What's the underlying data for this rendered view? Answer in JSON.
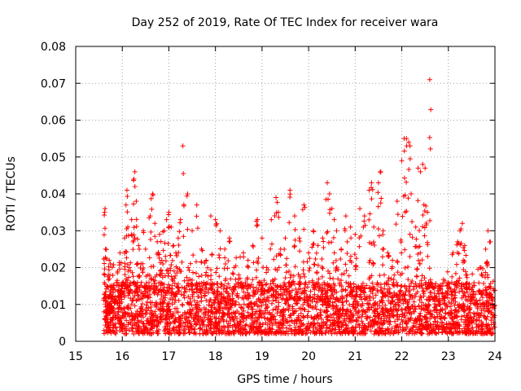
{
  "chart_data": {
    "type": "scatter",
    "title": "Day 252 of 2019, Rate Of TEC Index for receiver wara",
    "xlabel": "GPS time / hours",
    "ylabel": "ROTI / TECUs",
    "xlim": [
      15,
      24
    ],
    "ylim": [
      0,
      0.08
    ],
    "xticks": [
      15,
      16,
      17,
      18,
      19,
      20,
      21,
      22,
      23,
      24
    ],
    "yticks": [
      0,
      0.01,
      0.02,
      0.03,
      0.04,
      0.05,
      0.06,
      0.07,
      0.08
    ],
    "xtick_labels": [
      "15",
      "16",
      "17",
      "18",
      "19",
      "20",
      "21",
      "22",
      "23",
      "24"
    ],
    "ytick_labels": [
      "0",
      "0.01",
      "0.02",
      "0.03",
      "0.04",
      "0.05",
      "0.06",
      "0.07",
      "0.08"
    ],
    "grid": true,
    "marker": "+",
    "color": "#ff0000",
    "series": [
      {
        "name": "ROTI",
        "points": [
          [
            15.62,
            0.035
          ],
          [
            15.63,
            0.036
          ],
          [
            15.64,
            0.025
          ],
          [
            15.65,
            0.012
          ],
          [
            15.66,
            0.008
          ],
          [
            15.68,
            0.005
          ],
          [
            15.7,
            0.018
          ],
          [
            15.72,
            0.022
          ],
          [
            15.74,
            0.006
          ],
          [
            15.76,
            0.009
          ],
          [
            15.8,
            0.014
          ],
          [
            15.85,
            0.011
          ],
          [
            15.9,
            0.019
          ],
          [
            15.95,
            0.024
          ],
          [
            16.0,
            0.016
          ],
          [
            16.05,
            0.028
          ],
          [
            16.08,
            0.037
          ],
          [
            16.1,
            0.041
          ],
          [
            16.12,
            0.031
          ],
          [
            16.15,
            0.02
          ],
          [
            16.2,
            0.033
          ],
          [
            16.25,
            0.044
          ],
          [
            16.27,
            0.046
          ],
          [
            16.3,
            0.038
          ],
          [
            16.35,
            0.026
          ],
          [
            16.4,
            0.021
          ],
          [
            16.45,
            0.03
          ],
          [
            16.5,
            0.025
          ],
          [
            16.55,
            0.018
          ],
          [
            16.6,
            0.034
          ],
          [
            16.65,
            0.04
          ],
          [
            16.7,
            0.032
          ],
          [
            16.75,
            0.027
          ],
          [
            16.8,
            0.029
          ],
          [
            16.85,
            0.022
          ],
          [
            16.9,
            0.03
          ],
          [
            16.95,
            0.033
          ],
          [
            17.0,
            0.035
          ],
          [
            17.05,
            0.031
          ],
          [
            17.1,
            0.026
          ],
          [
            17.15,
            0.024
          ],
          [
            17.2,
            0.028
          ],
          [
            17.25,
            0.033
          ],
          [
            17.3,
            0.053
          ],
          [
            17.4,
            0.04
          ],
          [
            17.5,
            0.03
          ],
          [
            17.6,
            0.037
          ],
          [
            17.7,
            0.025
          ],
          [
            17.8,
            0.022
          ],
          [
            17.9,
            0.034
          ],
          [
            18.0,
            0.033
          ],
          [
            18.1,
            0.03
          ],
          [
            18.2,
            0.025
          ],
          [
            18.3,
            0.028
          ],
          [
            18.4,
            0.02
          ],
          [
            18.5,
            0.018
          ],
          [
            18.6,
            0.024
          ],
          [
            18.7,
            0.022
          ],
          [
            18.8,
            0.026
          ],
          [
            18.9,
            0.033
          ],
          [
            19.0,
            0.028
          ],
          [
            19.1,
            0.02
          ],
          [
            19.2,
            0.033
          ],
          [
            19.3,
            0.039
          ],
          [
            19.35,
            0.035
          ],
          [
            19.4,
            0.025
          ],
          [
            19.5,
            0.028
          ],
          [
            19.6,
            0.041
          ],
          [
            19.7,
            0.034
          ],
          [
            19.8,
            0.028
          ],
          [
            19.9,
            0.037
          ],
          [
            20.0,
            0.024
          ],
          [
            20.1,
            0.03
          ],
          [
            20.2,
            0.026
          ],
          [
            20.3,
            0.028
          ],
          [
            20.4,
            0.043
          ],
          [
            20.45,
            0.04
          ],
          [
            20.5,
            0.036
          ],
          [
            20.55,
            0.033
          ],
          [
            20.6,
            0.03
          ],
          [
            20.7,
            0.025
          ],
          [
            20.8,
            0.034
          ],
          [
            20.9,
            0.031
          ],
          [
            21.0,
            0.029
          ],
          [
            21.1,
            0.036
          ],
          [
            21.2,
            0.034
          ],
          [
            21.3,
            0.041
          ],
          [
            21.35,
            0.043
          ],
          [
            21.4,
            0.031
          ],
          [
            21.5,
            0.043
          ],
          [
            21.55,
            0.046
          ],
          [
            21.6,
            0.03
          ],
          [
            21.7,
            0.024
          ],
          [
            21.8,
            0.022
          ],
          [
            21.9,
            0.038
          ],
          [
            22.0,
            0.049
          ],
          [
            22.05,
            0.055
          ],
          [
            22.1,
            0.055
          ],
          [
            22.15,
            0.054
          ],
          [
            22.2,
            0.04
          ],
          [
            22.3,
            0.031
          ],
          [
            22.35,
            0.047
          ],
          [
            22.4,
            0.046
          ],
          [
            22.45,
            0.048
          ],
          [
            22.5,
            0.047
          ],
          [
            22.55,
            0.035
          ],
          [
            22.6,
            0.071
          ],
          [
            22.7,
            0.013
          ],
          [
            22.8,
            0.01
          ],
          [
            22.9,
            0.012
          ],
          [
            23.0,
            0.016
          ],
          [
            23.1,
            0.024
          ],
          [
            23.2,
            0.027
          ],
          [
            23.25,
            0.03
          ],
          [
            23.3,
            0.032
          ],
          [
            23.35,
            0.026
          ],
          [
            23.4,
            0.018
          ],
          [
            23.5,
            0.014
          ],
          [
            23.6,
            0.011
          ],
          [
            23.7,
            0.02
          ],
          [
            23.8,
            0.025
          ],
          [
            23.85,
            0.03
          ],
          [
            23.9,
            0.027
          ],
          [
            23.95,
            0.012
          ],
          [
            23.98,
            0.009
          ]
        ]
      }
    ],
    "background_band": {
      "description": "dense mass of points between about 0.003 and 0.015 spanning 15.6 to 24 hours",
      "x_range": [
        15.6,
        24.0
      ],
      "y_range": [
        0.002,
        0.016
      ],
      "count": 3000
    }
  }
}
